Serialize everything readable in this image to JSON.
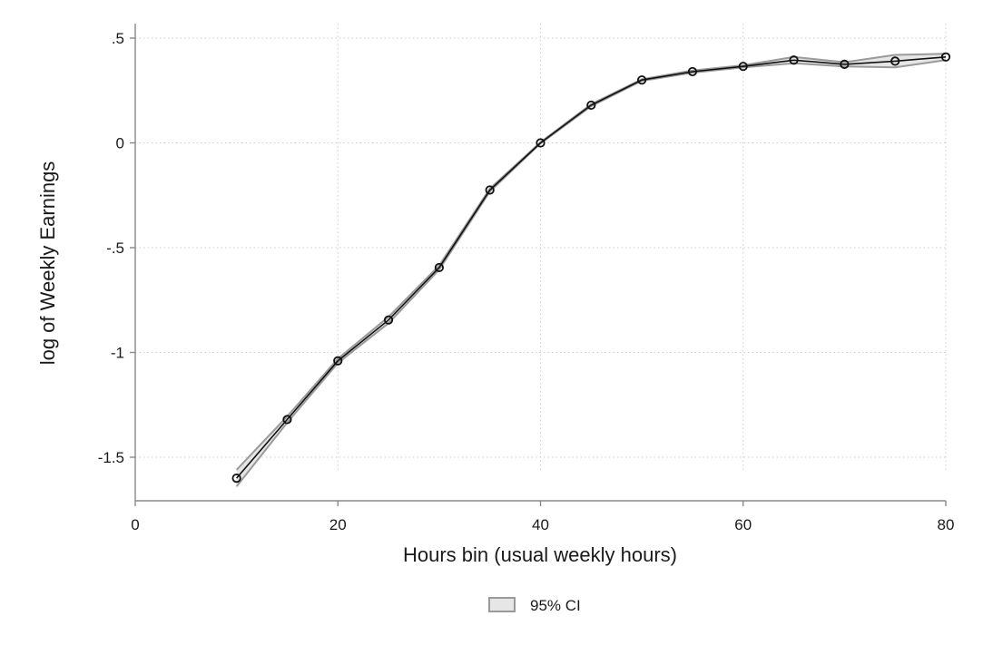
{
  "chart_data": {
    "type": "line",
    "title": "",
    "xlabel": "Hours bin (usual weekly hours)",
    "ylabel": "log of Weekly Earnings",
    "xlim": [
      0,
      80
    ],
    "ylim": [
      -1.65,
      0.5
    ],
    "x_ticks": [
      0,
      20,
      40,
      60,
      80
    ],
    "x_tick_labels": [
      "0",
      "20",
      "40",
      "60",
      "80"
    ],
    "y_ticks": [
      -1.5,
      -1,
      -0.5,
      0,
      0.5
    ],
    "y_tick_labels": [
      "-1.5",
      "-1",
      "-.5",
      "0",
      ".5"
    ],
    "grid": true,
    "legend_position": "bottom-center",
    "legend": [
      "95% CI"
    ],
    "x": [
      10,
      15,
      20,
      25,
      30,
      35,
      40,
      45,
      50,
      55,
      60,
      65,
      70,
      75,
      80
    ],
    "series": [
      {
        "values": [
          -1.6,
          -1.32,
          -1.04,
          -0.845,
          -0.595,
          -0.225,
          0.0,
          0.18,
          0.3,
          0.34,
          0.365,
          0.395,
          0.375,
          0.39,
          0.41
        ],
        "color": "#111111",
        "marker": "hollow-circle"
      }
    ],
    "ci": {
      "name": "95% CI",
      "lower": [
        -1.64,
        -1.335,
        -1.05,
        -0.86,
        -0.605,
        -0.232,
        -0.003,
        0.175,
        0.296,
        0.335,
        0.36,
        0.38,
        0.365,
        0.36,
        0.395
      ],
      "upper": [
        -1.56,
        -1.305,
        -1.03,
        -0.83,
        -0.585,
        -0.218,
        0.003,
        0.185,
        0.304,
        0.345,
        0.37,
        0.41,
        0.385,
        0.42,
        0.425
      ],
      "fill": "#e6e6e6",
      "stroke": "#9a9a9a"
    }
  }
}
